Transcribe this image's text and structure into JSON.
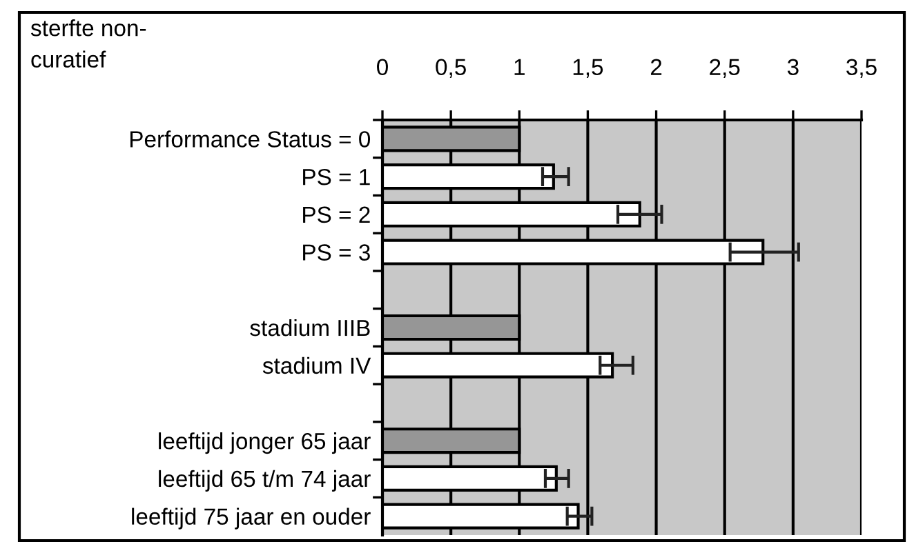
{
  "chart_data": {
    "type": "bar",
    "orientation": "horizontal",
    "title": "sterfte non-\ncuratief",
    "categories": [
      "Performance Status = 0",
      "PS = 1",
      "PS = 2",
      "PS = 3",
      null,
      "stadium IIIB",
      "stadium IV",
      null,
      "leeftijd jonger 65 jaar",
      "leeftijd 65 t/m 74 jaar",
      "leeftijd 75 jaar en ouder"
    ],
    "values": [
      1,
      1.25,
      1.88,
      2.78,
      null,
      1,
      1.68,
      null,
      1,
      1.27,
      1.43
    ],
    "colors": [
      "#969696",
      "#ffffff",
      "#ffffff",
      "#ffffff",
      null,
      "#969696",
      "#ffffff",
      null,
      "#969696",
      "#ffffff",
      "#ffffff"
    ],
    "errors": [
      null,
      [
        1.17,
        1.36
      ],
      [
        1.72,
        2.04
      ],
      [
        2.54,
        3.04
      ],
      null,
      null,
      [
        1.59,
        1.83
      ],
      null,
      null,
      [
        1.19,
        1.36
      ],
      [
        1.35,
        1.53
      ]
    ],
    "xlim": [
      0,
      3.5
    ],
    "xticks": [
      0,
      {
        "value": 0.5,
        "label": "0,5"
      },
      1,
      {
        "value": 1.5,
        "label": "1,5"
      },
      2,
      {
        "value": 2.5,
        "label": "2,5"
      },
      3,
      {
        "value": 3.5,
        "label": "3,5"
      }
    ],
    "grid": "x",
    "legend": false
  }
}
